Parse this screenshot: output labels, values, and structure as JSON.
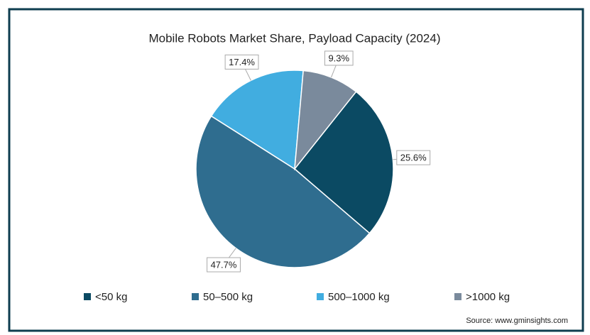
{
  "chart_data": {
    "type": "pie",
    "title": "Mobile Robots Market Share, Payload Capacity (2024)",
    "categories": [
      "<50 kg",
      "50–500 kg",
      "500–1000 kg",
      ">1000 kg"
    ],
    "values": [
      25.6,
      47.7,
      17.4,
      9.3
    ],
    "value_labels": [
      "25.6%",
      "47.7%",
      "17.4%",
      "9.3%"
    ],
    "colors": [
      "#0b4a63",
      "#2f6d8f",
      "#41ade0",
      "#7a8a9c"
    ],
    "source": "Source: www.gminsights.com"
  }
}
